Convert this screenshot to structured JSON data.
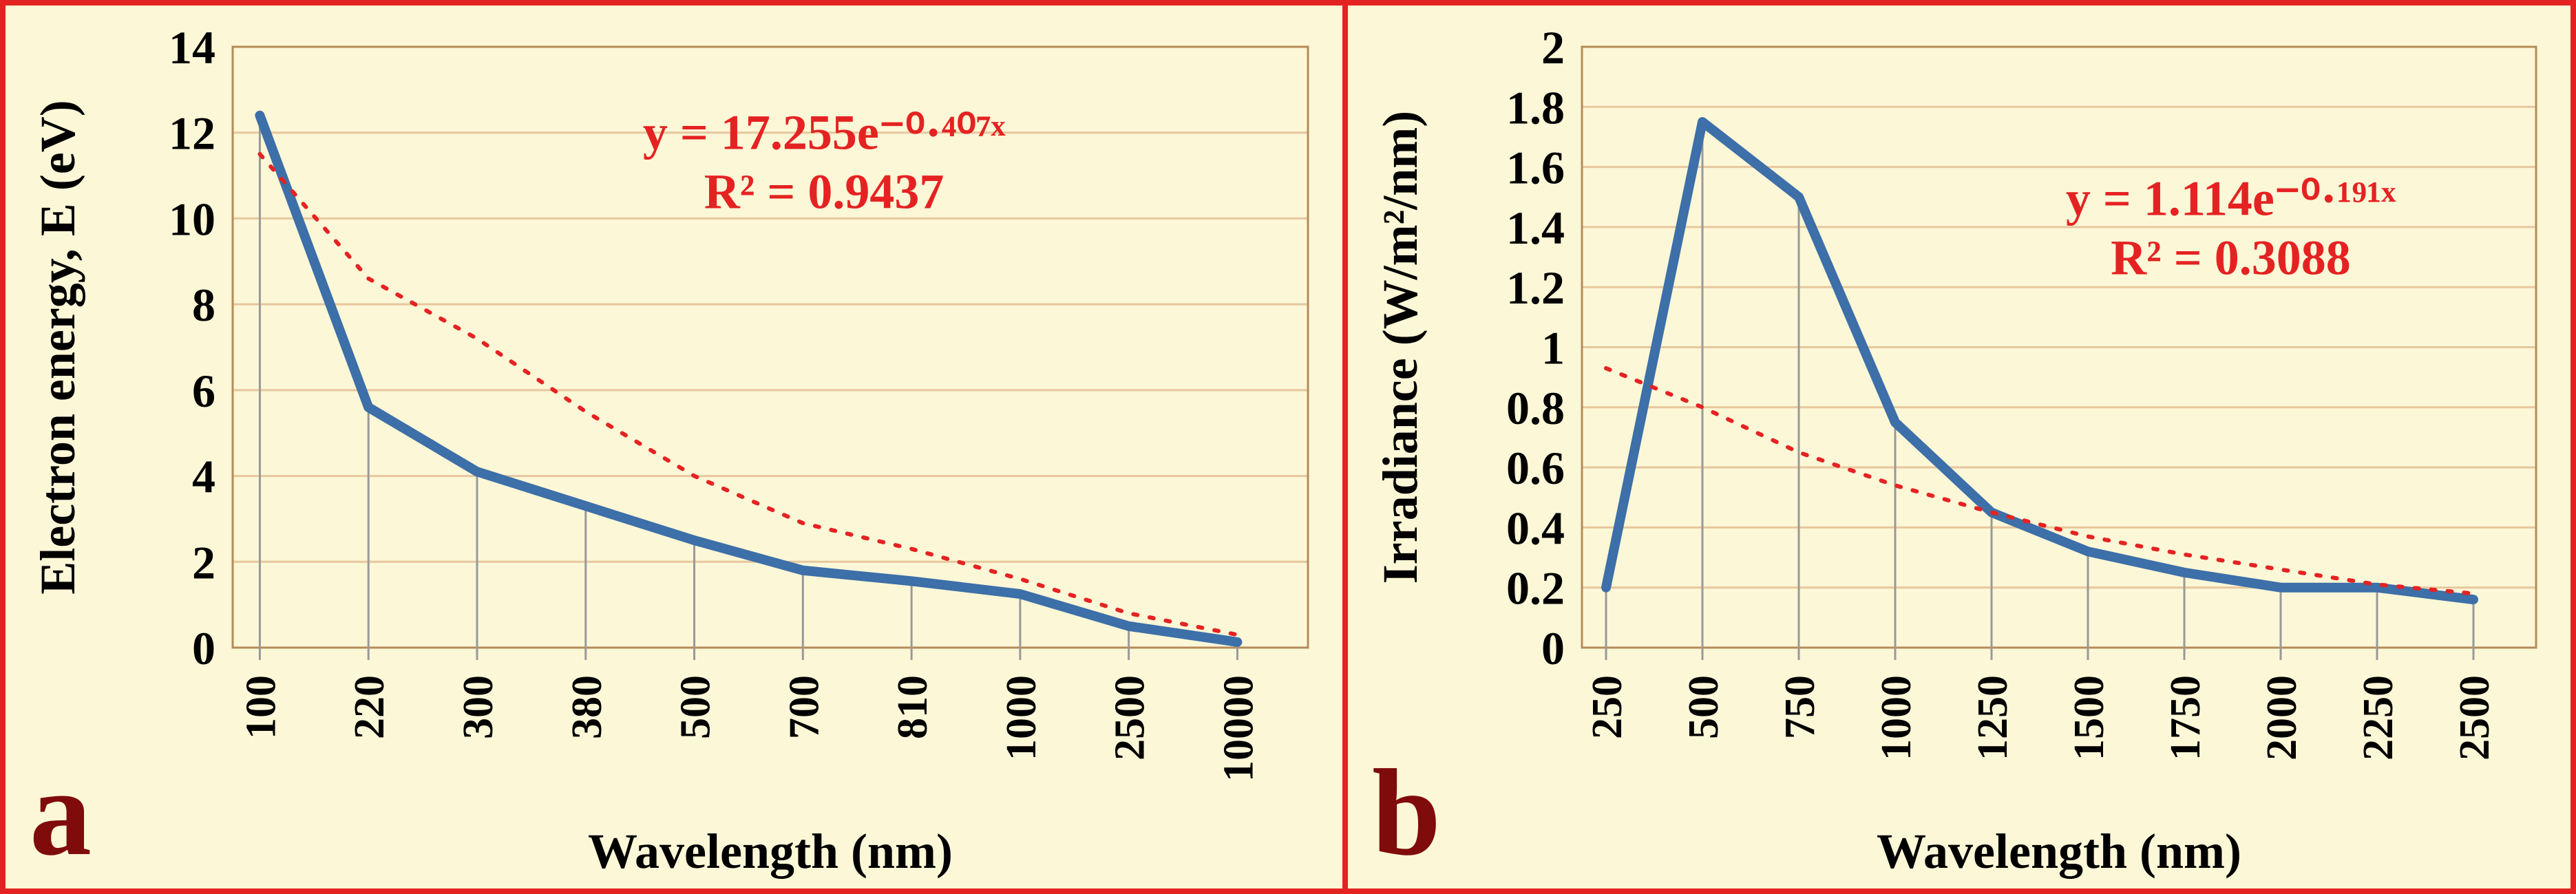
{
  "figure": {
    "border_color": "#e52222",
    "background_color": "#fcf7d7",
    "panel_label_color": "#7f0b0b"
  },
  "charts": {
    "a": {
      "panel_label": "a",
      "type": "line",
      "x_title": "Wavelength (nm)",
      "y_title": "Electron energy, E (eV)",
      "x_categories": [
        "100",
        "220",
        "300",
        "380",
        "500",
        "700",
        "810",
        "1000",
        "2500",
        "10000"
      ],
      "y_ticks": [
        0,
        2,
        4,
        6,
        8,
        10,
        12,
        14
      ],
      "ylim": [
        0,
        14
      ],
      "data_y": [
        12.4,
        5.6,
        4.1,
        3.3,
        2.5,
        1.8,
        1.55,
        1.25,
        0.5,
        0.13
      ],
      "trend_y": [
        11.5,
        8.6,
        7.2,
        5.5,
        4.0,
        2.9,
        2.3,
        1.6,
        0.8,
        0.3
      ],
      "equation_line1": "y = 17.255e⁻⁰·⁴⁰⁷ˣ",
      "equation_line2": "R² = 0.9437",
      "line_color": "#3d6fa8",
      "trend_color": "#e52222",
      "grid_color": "#e7c79e",
      "tick_fontsize": 68,
      "title_fontsize": 72,
      "equation_fontsize": 72
    },
    "b": {
      "panel_label": "b",
      "type": "line",
      "x_title": "Wavelength (nm)",
      "y_title": "Irradiance (W/m²/nm)",
      "x_categories": [
        "250",
        "500",
        "750",
        "1000",
        "1250",
        "1500",
        "1750",
        "2000",
        "2250",
        "2500"
      ],
      "y_ticks": [
        0,
        0.2,
        0.4,
        0.6,
        0.8,
        1,
        1.2,
        1.4,
        1.6,
        1.8,
        2
      ],
      "ylim": [
        0,
        2
      ],
      "data_y": [
        0.2,
        1.75,
        1.5,
        0.75,
        0.45,
        0.32,
        0.25,
        0.2,
        0.2,
        0.16
      ],
      "trend_y": [
        0.93,
        0.8,
        0.65,
        0.54,
        0.45,
        0.37,
        0.31,
        0.26,
        0.21,
        0.18
      ],
      "equation_line1": "y = 1.114e⁻⁰·¹⁹¹ˣ",
      "equation_line2": "R² = 0.3088",
      "line_color": "#3d6fa8",
      "trend_color": "#e52222",
      "grid_color": "#e7c79e",
      "tick_fontsize": 68,
      "title_fontsize": 72,
      "equation_fontsize": 72
    }
  }
}
